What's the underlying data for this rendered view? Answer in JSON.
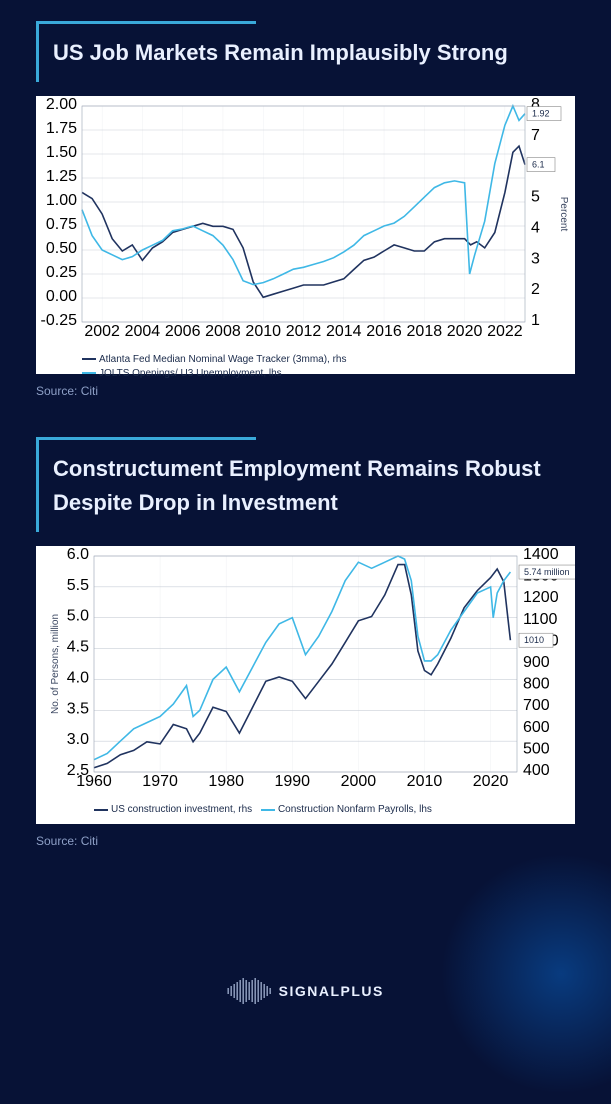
{
  "background_color": "#071236",
  "accent_color": "#3aa9d9",
  "brand": "SIGNALPLUS",
  "chart1": {
    "type": "line",
    "title": "US Job Markets Remain Implausibly Strong",
    "source": "Source: Citi",
    "background_color": "#ffffff",
    "grid_color": "#c9cfd8",
    "left_axis": {
      "min": -0.25,
      "max": 2.0,
      "step": 0.25
    },
    "right_axis": {
      "min": 1,
      "max": 8,
      "step": 1,
      "label": "Percent"
    },
    "x_axis": {
      "min": 2001,
      "max": 2023,
      "ticks": [
        2002,
        2004,
        2006,
        2008,
        2010,
        2012,
        2014,
        2016,
        2018,
        2020,
        2022
      ]
    },
    "series": [
      {
        "name": "Atlanta Fed Median Nominal Wage Tracker (3mma), rhs",
        "color": "#20335f",
        "axis": "right",
        "callout": "6.1",
        "data": [
          [
            2001,
            5.2
          ],
          [
            2001.5,
            5.0
          ],
          [
            2002,
            4.5
          ],
          [
            2002.5,
            3.7
          ],
          [
            2003,
            3.3
          ],
          [
            2003.5,
            3.5
          ],
          [
            2004,
            3.0
          ],
          [
            2004.5,
            3.4
          ],
          [
            2005,
            3.6
          ],
          [
            2005.5,
            3.9
          ],
          [
            2006,
            4.0
          ],
          [
            2006.5,
            4.1
          ],
          [
            2007,
            4.2
          ],
          [
            2007.5,
            4.1
          ],
          [
            2008,
            4.1
          ],
          [
            2008.5,
            4.0
          ],
          [
            2009,
            3.4
          ],
          [
            2009.5,
            2.3
          ],
          [
            2010,
            1.8
          ],
          [
            2010.5,
            1.9
          ],
          [
            2011,
            2.0
          ],
          [
            2011.5,
            2.1
          ],
          [
            2012,
            2.2
          ],
          [
            2012.5,
            2.2
          ],
          [
            2013,
            2.2
          ],
          [
            2013.5,
            2.3
          ],
          [
            2014,
            2.4
          ],
          [
            2014.5,
            2.7
          ],
          [
            2015,
            3.0
          ],
          [
            2015.5,
            3.1
          ],
          [
            2016,
            3.3
          ],
          [
            2016.5,
            3.5
          ],
          [
            2017,
            3.4
          ],
          [
            2017.5,
            3.3
          ],
          [
            2018,
            3.3
          ],
          [
            2018.5,
            3.6
          ],
          [
            2019,
            3.7
          ],
          [
            2019.5,
            3.7
          ],
          [
            2020,
            3.7
          ],
          [
            2020.3,
            3.5
          ],
          [
            2020.6,
            3.6
          ],
          [
            2021,
            3.4
          ],
          [
            2021.5,
            3.9
          ],
          [
            2022,
            5.2
          ],
          [
            2022.4,
            6.5
          ],
          [
            2022.7,
            6.7
          ],
          [
            2023,
            6.1
          ]
        ]
      },
      {
        "name": "JOLTS Openings/ U3 Unemployment, lhs",
        "color": "#3fb8e6",
        "axis": "left",
        "callout": "1.92",
        "data": [
          [
            2001,
            0.92
          ],
          [
            2001.5,
            0.65
          ],
          [
            2002,
            0.5
          ],
          [
            2002.5,
            0.45
          ],
          [
            2003,
            0.4
          ],
          [
            2003.5,
            0.43
          ],
          [
            2004,
            0.5
          ],
          [
            2004.5,
            0.55
          ],
          [
            2005,
            0.6
          ],
          [
            2005.5,
            0.7
          ],
          [
            2006,
            0.72
          ],
          [
            2006.5,
            0.75
          ],
          [
            2007,
            0.7
          ],
          [
            2007.5,
            0.65
          ],
          [
            2008,
            0.55
          ],
          [
            2008.5,
            0.4
          ],
          [
            2009,
            0.18
          ],
          [
            2009.5,
            0.14
          ],
          [
            2010,
            0.16
          ],
          [
            2010.5,
            0.2
          ],
          [
            2011,
            0.25
          ],
          [
            2011.5,
            0.3
          ],
          [
            2012,
            0.32
          ],
          [
            2012.5,
            0.35
          ],
          [
            2013,
            0.38
          ],
          [
            2013.5,
            0.42
          ],
          [
            2014,
            0.48
          ],
          [
            2014.5,
            0.55
          ],
          [
            2015,
            0.65
          ],
          [
            2015.5,
            0.7
          ],
          [
            2016,
            0.75
          ],
          [
            2016.5,
            0.78
          ],
          [
            2017,
            0.85
          ],
          [
            2017.5,
            0.95
          ],
          [
            2018,
            1.05
          ],
          [
            2018.5,
            1.15
          ],
          [
            2019,
            1.2
          ],
          [
            2019.5,
            1.22
          ],
          [
            2020,
            1.2
          ],
          [
            2020.25,
            0.25
          ],
          [
            2020.5,
            0.45
          ],
          [
            2021,
            0.8
          ],
          [
            2021.5,
            1.4
          ],
          [
            2022,
            1.8
          ],
          [
            2022.4,
            2.0
          ],
          [
            2022.7,
            1.85
          ],
          [
            2023,
            1.92
          ]
        ]
      }
    ]
  },
  "chart2": {
    "type": "line",
    "title": "Constructument Employment Remains Robust Despite Drop in Investment",
    "source": "Source: Citi",
    "background_color": "#ffffff",
    "grid_color": "#c9cfd8",
    "left_axis": {
      "min": 2.5,
      "max": 6.0,
      "step": 0.5,
      "label": "No. of Persons, million"
    },
    "right_axis": {
      "min": 400,
      "max": 1400,
      "step": 100
    },
    "x_axis": {
      "min": 1960,
      "max": 2024,
      "ticks": [
        1960,
        1970,
        1980,
        1990,
        2000,
        2010,
        2020
      ]
    },
    "series": [
      {
        "name": "US construction investment, rhs",
        "color": "#20335f",
        "axis": "right",
        "callout": "1010",
        "data": [
          [
            1960,
            420
          ],
          [
            1962,
            440
          ],
          [
            1964,
            480
          ],
          [
            1966,
            500
          ],
          [
            1968,
            540
          ],
          [
            1970,
            530
          ],
          [
            1972,
            620
          ],
          [
            1974,
            600
          ],
          [
            1975,
            540
          ],
          [
            1976,
            580
          ],
          [
            1978,
            700
          ],
          [
            1980,
            680
          ],
          [
            1982,
            580
          ],
          [
            1984,
            700
          ],
          [
            1986,
            820
          ],
          [
            1988,
            840
          ],
          [
            1990,
            820
          ],
          [
            1992,
            740
          ],
          [
            1994,
            820
          ],
          [
            1996,
            900
          ],
          [
            1998,
            1000
          ],
          [
            2000,
            1100
          ],
          [
            2002,
            1120
          ],
          [
            2004,
            1220
          ],
          [
            2006,
            1360
          ],
          [
            2007,
            1360
          ],
          [
            2008,
            1220
          ],
          [
            2009,
            960
          ],
          [
            2010,
            870
          ],
          [
            2011,
            850
          ],
          [
            2012,
            900
          ],
          [
            2014,
            1020
          ],
          [
            2016,
            1160
          ],
          [
            2018,
            1240
          ],
          [
            2020,
            1300
          ],
          [
            2021,
            1340
          ],
          [
            2022,
            1280
          ],
          [
            2022.6,
            1120
          ],
          [
            2023,
            1010
          ]
        ]
      },
      {
        "name": "Construction Nonfarm Payrolls, lhs",
        "color": "#3fb8e6",
        "axis": "left",
        "callout": "5.74 million",
        "data": [
          [
            1960,
            2.7
          ],
          [
            1962,
            2.8
          ],
          [
            1964,
            3.0
          ],
          [
            1966,
            3.2
          ],
          [
            1968,
            3.3
          ],
          [
            1970,
            3.4
          ],
          [
            1972,
            3.6
          ],
          [
            1974,
            3.9
          ],
          [
            1975,
            3.4
          ],
          [
            1976,
            3.5
          ],
          [
            1978,
            4.0
          ],
          [
            1980,
            4.2
          ],
          [
            1982,
            3.8
          ],
          [
            1984,
            4.2
          ],
          [
            1986,
            4.6
          ],
          [
            1988,
            4.9
          ],
          [
            1990,
            5.0
          ],
          [
            1992,
            4.4
          ],
          [
            1994,
            4.7
          ],
          [
            1996,
            5.1
          ],
          [
            1998,
            5.6
          ],
          [
            2000,
            5.9
          ],
          [
            2002,
            5.8
          ],
          [
            2004,
            5.9
          ],
          [
            2006,
            6.0
          ],
          [
            2007,
            5.95
          ],
          [
            2008,
            5.6
          ],
          [
            2009,
            4.7
          ],
          [
            2010,
            4.3
          ],
          [
            2011,
            4.3
          ],
          [
            2012,
            4.4
          ],
          [
            2014,
            4.8
          ],
          [
            2016,
            5.1
          ],
          [
            2018,
            5.4
          ],
          [
            2020,
            5.5
          ],
          [
            2020.4,
            5.0
          ],
          [
            2021,
            5.4
          ],
          [
            2022,
            5.6
          ],
          [
            2023,
            5.74
          ]
        ]
      }
    ]
  }
}
